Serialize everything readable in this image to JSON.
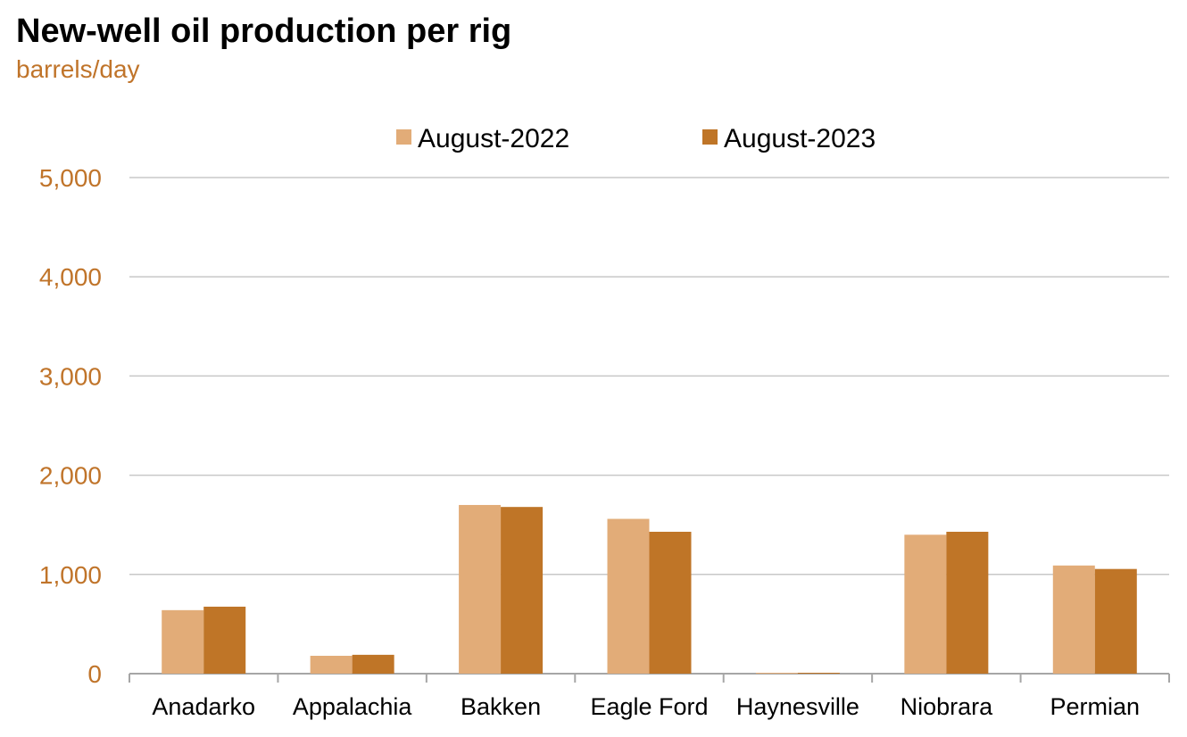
{
  "chart_data": {
    "type": "bar",
    "title": "New-well oil production per rig",
    "subtitle": "barrels/day",
    "xlabel": "",
    "ylabel": "barrels/day",
    "ylim": [
      0,
      5000
    ],
    "yticks": [
      0,
      1000,
      2000,
      3000,
      4000,
      5000
    ],
    "ytick_labels": [
      "0",
      "1,000",
      "2,000",
      "3,000",
      "4,000",
      "5,000"
    ],
    "grid": true,
    "legend_position": "top-center",
    "categories": [
      "Anadarko",
      "Appalachia",
      "Bakken",
      "Eagle Ford",
      "Haynesville",
      "Niobrara",
      "Permian"
    ],
    "series": [
      {
        "name": "August-2022",
        "color": "#e2ac78",
        "values": [
          640,
          180,
          1700,
          1560,
          8,
          1400,
          1090
        ]
      },
      {
        "name": "August-2023",
        "color": "#bf7527",
        "values": [
          675,
          190,
          1680,
          1430,
          8,
          1430,
          1055
        ]
      }
    ],
    "colors": {
      "tick_label": "#c0742a",
      "gridline": "#c8c8c8",
      "axis": "#a6a6a6"
    }
  }
}
